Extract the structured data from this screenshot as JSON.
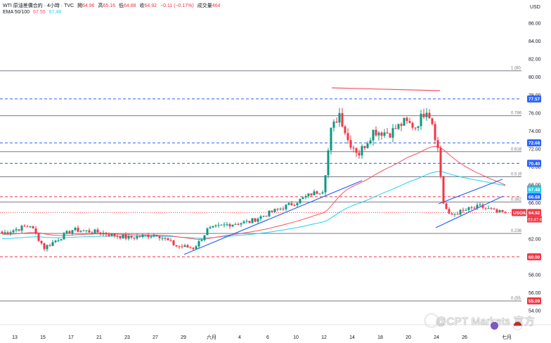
{
  "header": {
    "symbol_line": "WTI 原油差價合約 · 4小時 · TVC",
    "o_label": "開",
    "o_value": "64.96",
    "h_label": "高",
    "h_value": "65.16",
    "l_label": "低",
    "l_value": "64.88",
    "c_label": "收",
    "c_value": "64.92",
    "change": "−0.11 (−0.17%)",
    "vol_label": "成交量",
    "vol_value": "464",
    "ema_label": "EMA 50/100",
    "ema_fast": "67.55",
    "ema_slow": "67.48"
  },
  "currency": "USD",
  "watermark": "@CPT Markets 官方",
  "colors": {
    "up": "#089981",
    "down": "#f23645",
    "ema_fast": "#f7525f",
    "ema_slow": "#22d1ee",
    "trend": "#2962ff",
    "fib": "#787b86",
    "blue_dash": "#2962ff",
    "red_dash": "#f23645"
  },
  "chart_data": {
    "type": "candlestick",
    "ylim": [
      54.0,
      86.0
    ],
    "y_ticks": [
      "86.00",
      "84.00",
      "82.00",
      "80.00",
      "78.00",
      "76.00",
      "74.00",
      "72.00",
      "70.00",
      "68.00",
      "66.00",
      "64.00",
      "62.00",
      "60.00",
      "58.00",
      "56.00",
      "54.00"
    ],
    "x_ticks": [
      {
        "i": 2,
        "label": "13"
      },
      {
        "i": 12,
        "label": "15"
      },
      {
        "i": 22,
        "label": "17"
      },
      {
        "i": 32,
        "label": "21"
      },
      {
        "i": 42,
        "label": "23"
      },
      {
        "i": 52,
        "label": "27"
      },
      {
        "i": 62,
        "label": "29"
      },
      {
        "i": 72,
        "label": "六月"
      },
      {
        "i": 82,
        "label": "4"
      },
      {
        "i": 92,
        "label": "6"
      },
      {
        "i": 102,
        "label": "10"
      },
      {
        "i": 112,
        "label": "12"
      },
      {
        "i": 122,
        "label": "14"
      },
      {
        "i": 132,
        "label": "18"
      },
      {
        "i": 142,
        "label": "20"
      },
      {
        "i": 152,
        "label": "24"
      },
      {
        "i": 162,
        "label": "26"
      },
      {
        "i": 177,
        "label": "七月"
      }
    ],
    "fib_levels": [
      {
        "label": "1 (80.7)",
        "value": 80.7
      },
      {
        "label": "0.786 (7",
        "value": 75.7
      },
      {
        "label": "0.618 (7",
        "value": 71.7
      },
      {
        "label": "0.5 (68",
        "value": 68.9
      },
      {
        "label": "0.382 (6",
        "value": 66.1
      },
      {
        "label": "0.236 (6",
        "value": 62.6
      },
      {
        "label": "0 (55.09",
        "value": 55.09
      }
    ],
    "price_tags": [
      {
        "value": "77.57",
        "color": "#2962ff"
      },
      {
        "value": "72.68",
        "color": "#2962ff"
      },
      {
        "value": "70.40",
        "color": "#2962ff"
      },
      {
        "value": "67.55",
        "color": "#f23645"
      },
      {
        "value": "67.48",
        "color": "#22d1ee"
      },
      {
        "value": "66.68",
        "color": "#2962ff"
      },
      {
        "value": "64.92",
        "color": "#f23645"
      },
      {
        "value": "60.00",
        "color": "#f23645"
      },
      {
        "value": "55.09",
        "color": "#f23645"
      }
    ],
    "symbol_tag": "USOIL",
    "countdown": "03:47:43",
    "hlines": [
      {
        "value": 77.57,
        "style": "dash",
        "color": "#2962ff"
      },
      {
        "value": 72.68,
        "style": "dash",
        "color": "#2962ff"
      },
      {
        "value": 70.4,
        "style": "dash",
        "color": "#2962ff"
      },
      {
        "value": 66.68,
        "style": "dash",
        "color": "#f23645"
      },
      {
        "value": 64.92,
        "style": "dot",
        "color": "#f23645"
      },
      {
        "value": 60.0,
        "style": "dash",
        "color": "#f23645"
      }
    ],
    "key_points": [
      [
        0,
        62.6
      ],
      [
        10,
        63.5
      ],
      [
        15,
        61.0
      ],
      [
        25,
        63.0
      ],
      [
        35,
        62.7
      ],
      [
        45,
        62.1
      ],
      [
        55,
        62.5
      ],
      [
        62,
        61.2
      ],
      [
        68,
        61.0
      ],
      [
        70,
        61.6
      ],
      [
        73,
        63.0
      ],
      [
        80,
        63.6
      ],
      [
        88,
        63.9
      ],
      [
        96,
        65.0
      ],
      [
        104,
        66.0
      ],
      [
        110,
        67.0
      ],
      [
        114,
        67.4
      ],
      [
        117,
        74.0
      ],
      [
        120,
        76.0
      ],
      [
        123,
        73.0
      ],
      [
        127,
        71.5
      ],
      [
        132,
        74.0
      ],
      [
        138,
        73.8
      ],
      [
        143,
        75.0
      ],
      [
        147,
        74.5
      ],
      [
        151,
        76.5
      ],
      [
        153,
        75.0
      ],
      [
        155,
        72.0
      ],
      [
        157,
        66.0
      ],
      [
        159,
        64.6
      ],
      [
        165,
        65.2
      ],
      [
        170,
        65.6
      ],
      [
        174,
        65.2
      ],
      [
        176,
        64.92
      ]
    ],
    "series": [
      {
        "name": "EMA 50",
        "color": "#f7525f"
      },
      {
        "name": "EMA 100",
        "color": "#22d1ee"
      }
    ]
  }
}
